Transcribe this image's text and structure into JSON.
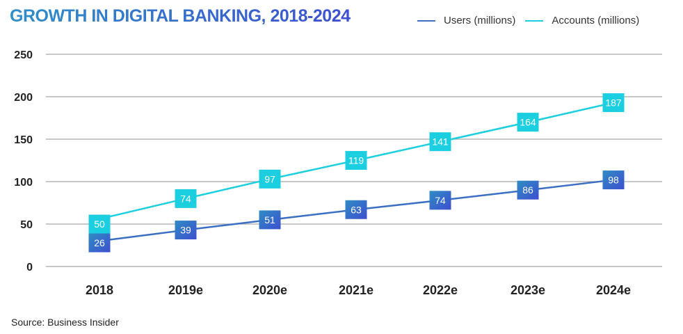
{
  "chart_data": {
    "type": "line",
    "title": "GROWTH IN DIGITAL BANKING, 2018-2024",
    "xlabel": "",
    "ylabel": "",
    "categories": [
      "2018",
      "2019e",
      "2020e",
      "2021e",
      "2022e",
      "2023e",
      "2024e"
    ],
    "y_ticks": [
      "0",
      "50",
      "100",
      "150",
      "200",
      "250"
    ],
    "ylim": [
      0,
      250
    ],
    "grid": true,
    "legend_position": "top-right",
    "series": [
      {
        "name": "Users (millions)",
        "color": "#3a6fc4",
        "values": [
          26,
          39,
          51,
          63,
          74,
          86,
          98
        ]
      },
      {
        "name": "Accounts (millions)",
        "color": "#1ccfe0",
        "values": [
          50,
          74,
          97,
          119,
          141,
          164,
          187
        ]
      }
    ],
    "source": "Source: Business Insider"
  }
}
